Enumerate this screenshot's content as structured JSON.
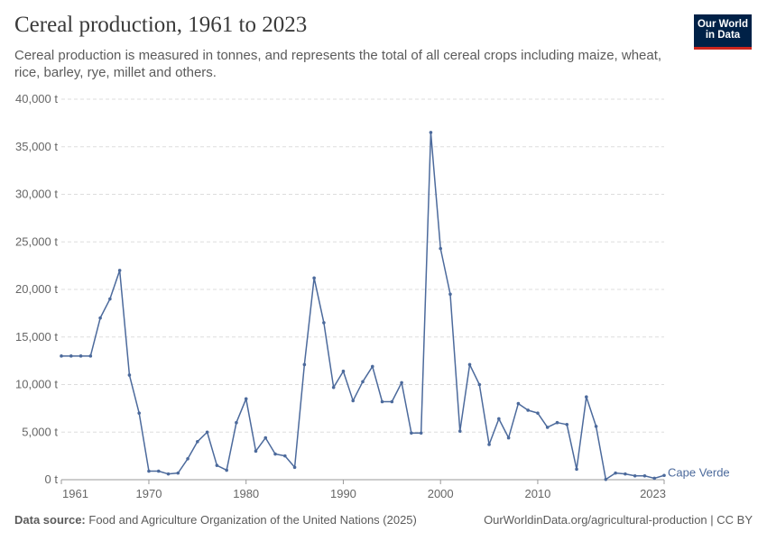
{
  "header": {
    "title": "Cereal production, 1961 to 2023",
    "subtitle": "Cereal production is measured in tonnes, and represents the total of all cereal crops including maize, wheat, rice, barley, rye, millet and others.",
    "logo_line1": "Our World",
    "logo_line2": "in Data"
  },
  "footer": {
    "source_label": "Data source:",
    "source_text": "Food and Agriculture Organization of the United Nations (2025)",
    "right_text": "OurWorldinData.org/agricultural-production | CC BY"
  },
  "colors": {
    "series": "#4c6a9c",
    "grid": "#dddddd",
    "text": "#5b5b5b",
    "brand": "#002147",
    "accent": "#ce261e"
  },
  "chart_data": {
    "type": "line",
    "title": "Cereal production, 1961 to 2023",
    "xlabel": "",
    "ylabel": "",
    "xlim": [
      1961,
      2023
    ],
    "ylim": [
      0,
      40000
    ],
    "x_ticks": [
      1961,
      1970,
      1980,
      1990,
      2000,
      2010,
      2023
    ],
    "y_ticks": [
      0,
      5000,
      10000,
      15000,
      20000,
      25000,
      30000,
      35000,
      40000
    ],
    "y_tick_labels": [
      "0 t",
      "5,000 t",
      "10,000 t",
      "15,000 t",
      "20,000 t",
      "25,000 t",
      "30,000 t",
      "35,000 t",
      "40,000 t"
    ],
    "grid": true,
    "series": [
      {
        "name": "Cape Verde",
        "x": [
          1961,
          1962,
          1963,
          1964,
          1965,
          1966,
          1967,
          1968,
          1969,
          1970,
          1971,
          1972,
          1973,
          1974,
          1975,
          1976,
          1977,
          1978,
          1979,
          1980,
          1981,
          1982,
          1983,
          1984,
          1985,
          1986,
          1987,
          1988,
          1989,
          1990,
          1991,
          1992,
          1993,
          1994,
          1995,
          1996,
          1997,
          1998,
          1999,
          2000,
          2001,
          2002,
          2003,
          2004,
          2005,
          2006,
          2007,
          2008,
          2009,
          2010,
          2011,
          2012,
          2013,
          2014,
          2015,
          2016,
          2017,
          2018,
          2019,
          2020,
          2021,
          2022,
          2023
        ],
        "y": [
          13000,
          13000,
          13000,
          13000,
          17000,
          19000,
          22000,
          11000,
          7000,
          900,
          900,
          600,
          700,
          2200,
          4000,
          5000,
          1500,
          1000,
          6000,
          8500,
          3000,
          4400,
          2700,
          2500,
          1300,
          12100,
          21200,
          16500,
          9700,
          11400,
          8300,
          10300,
          11900,
          8200,
          8200,
          10200,
          4900,
          4900,
          36500,
          24300,
          19500,
          5100,
          12100,
          10000,
          3700,
          6400,
          4400,
          8000,
          7300,
          7000,
          5500,
          6000,
          5800,
          1100,
          8700,
          5600,
          30,
          700,
          600,
          400,
          400,
          150,
          450
        ]
      }
    ]
  }
}
